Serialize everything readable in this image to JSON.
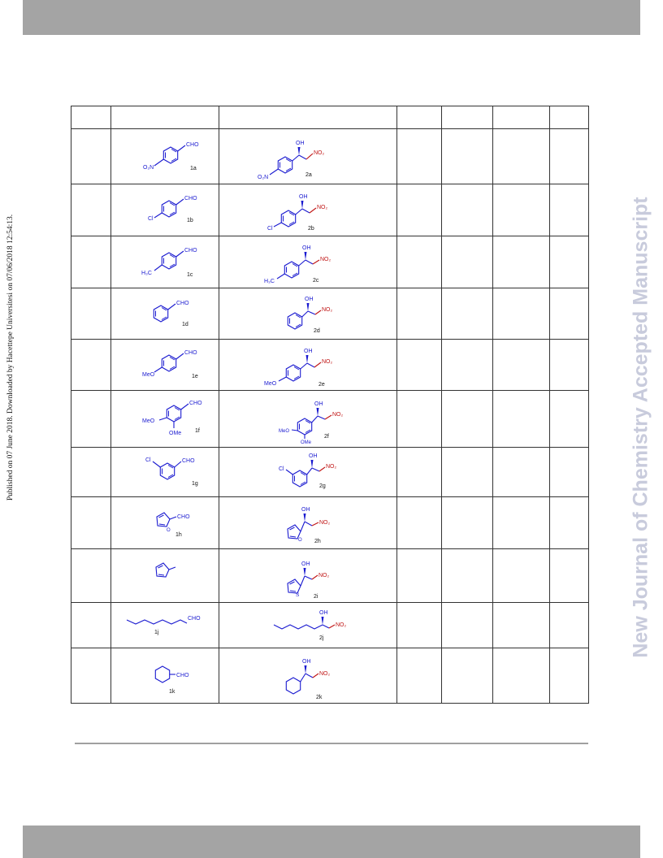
{
  "sidebar_left": "Published on 07 June 2018. Downloaded by Hacettepe Universitesi on 07/06/2018 12:54:13.",
  "sidebar_right": "New Journal of Chemistry Accepted Manuscript",
  "colors": {
    "bond": "#1a1ad0",
    "nitro": "#c01515",
    "header_bar": "#a4a4a4",
    "watermark": "#c8cbdc"
  },
  "rows": [
    {
      "substrate": {
        "label": "1a",
        "substituent": "O₂N",
        "group": "CHO"
      },
      "product": {
        "label": "2a",
        "substituent": "O₂N",
        "hydroxy": "OH",
        "nitro": "NO₂"
      }
    },
    {
      "substrate": {
        "label": "1b",
        "substituent": "Cl",
        "group": "CHO"
      },
      "product": {
        "label": "2b",
        "substituent": "Cl",
        "hydroxy": "OH",
        "nitro": "NO₂"
      }
    },
    {
      "substrate": {
        "label": "1c",
        "substituent": "H₃C",
        "group": "CHO"
      },
      "product": {
        "label": "2c",
        "substituent": "H₃C",
        "hydroxy": "OH",
        "nitro": "NO₂"
      }
    },
    {
      "substrate": {
        "label": "1d",
        "group": "CHO"
      },
      "product": {
        "label": "2d",
        "hydroxy": "OH",
        "nitro": "NO₂"
      }
    },
    {
      "substrate": {
        "label": "1e",
        "substituent": "MeO",
        "group": "CHO"
      },
      "product": {
        "label": "2e",
        "substituent": "MeO",
        "hydroxy": "OH",
        "nitro": "NO₂"
      }
    },
    {
      "substrate": {
        "label": "1f",
        "substituent": "MeO",
        "substituent2": "OMe",
        "group": "CHO"
      },
      "product": {
        "label": "2f",
        "substituent": "MeO",
        "substituent2": "OMe",
        "hydroxy": "OH",
        "nitro": "NO₂"
      }
    },
    {
      "substrate": {
        "label": "1g",
        "substituent": "Cl",
        "group": "CHO"
      },
      "product": {
        "label": "2g",
        "substituent": "Cl",
        "hydroxy": "OH",
        "nitro": "NO₂"
      }
    },
    {
      "substrate": {
        "label": "1h",
        "heteroatom": "O",
        "group": "CHO"
      },
      "product": {
        "label": "2h",
        "heteroatom": "O",
        "hydroxy": "OH",
        "nitro": "NO₂"
      }
    },
    {
      "substrate": {},
      "product": {
        "label": "2i",
        "heteroatom": "S",
        "hydroxy": "OH",
        "nitro": "NO₂"
      }
    },
    {
      "substrate": {
        "label": "1j",
        "group": "CHO"
      },
      "product": {
        "label": "2j",
        "hydroxy": "OH",
        "nitro": "NO₂"
      }
    },
    {
      "substrate": {
        "label": "1k",
        "group": "CHO"
      },
      "product": {
        "label": "2k",
        "hydroxy": "OH",
        "nitro": "NO₂"
      }
    }
  ]
}
